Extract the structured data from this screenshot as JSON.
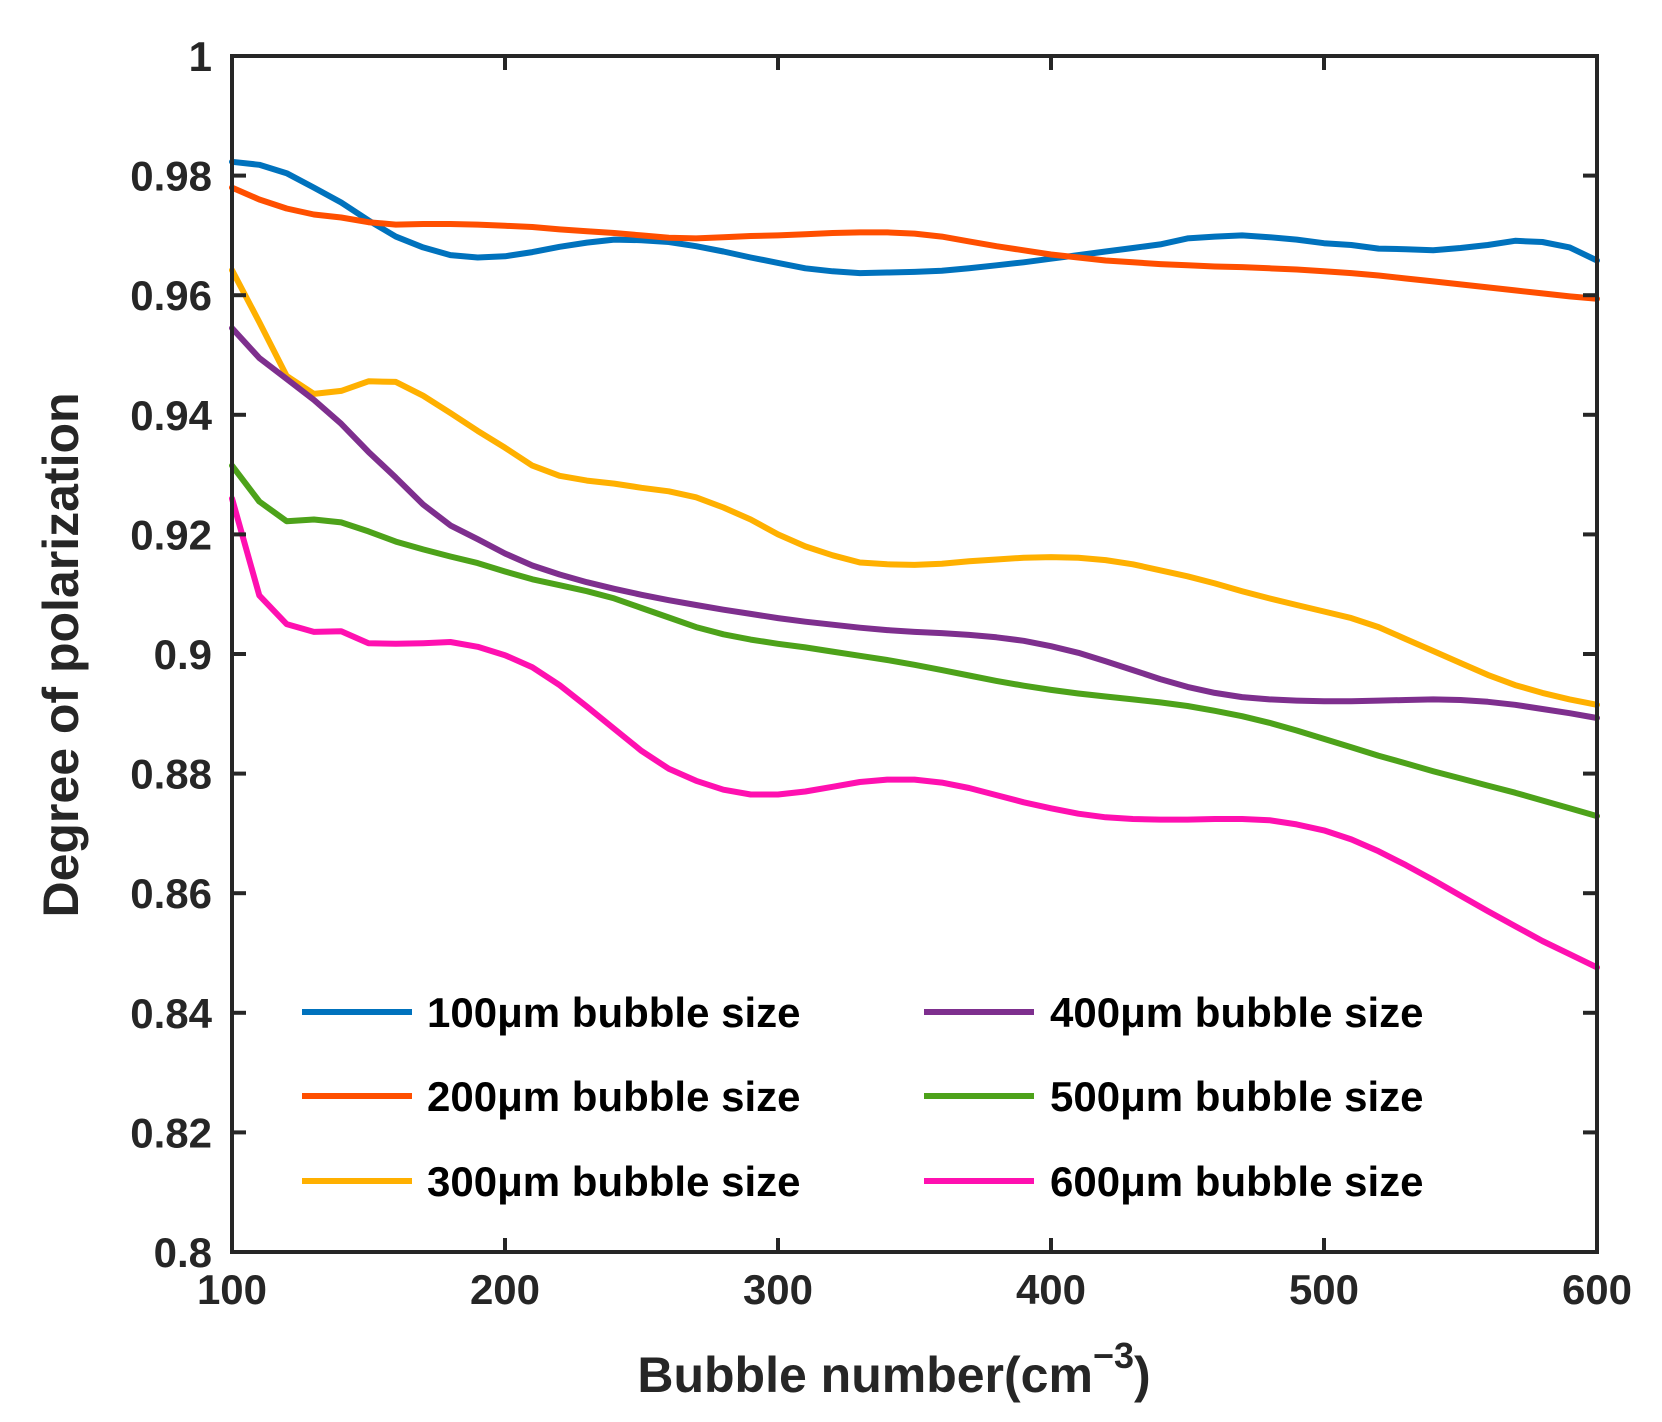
{
  "chart_data": {
    "type": "line",
    "title": "",
    "xlabel": "Bubble number(cm",
    "xlabel_sup": "−3",
    "xlabel_close": ")",
    "ylabel": "Degree of polarization",
    "xlim": [
      100,
      600
    ],
    "ylim": [
      0.8,
      1
    ],
    "xticks": [
      100,
      200,
      300,
      400,
      500,
      600
    ],
    "xtick_labels": [
      "100",
      "200",
      "300",
      "400",
      "500",
      "600"
    ],
    "yticks": [
      0.8,
      0.82,
      0.84,
      0.86,
      0.88,
      0.9,
      0.92,
      0.94,
      0.96,
      0.98,
      1
    ],
    "ytick_labels": [
      "0.8",
      "0.82",
      "0.84",
      "0.86",
      "0.88",
      "0.9",
      "0.92",
      "0.94",
      "0.96",
      "0.98",
      "1"
    ],
    "legend_position": "bottom",
    "grid": false,
    "x": [
      100,
      110,
      120,
      130,
      140,
      150,
      160,
      170,
      180,
      190,
      200,
      210,
      220,
      230,
      240,
      250,
      260,
      270,
      280,
      290,
      300,
      310,
      320,
      330,
      340,
      350,
      360,
      370,
      380,
      390,
      400,
      410,
      420,
      430,
      440,
      450,
      460,
      470,
      480,
      490,
      500,
      510,
      520,
      530,
      540,
      550,
      560,
      570,
      580,
      590,
      600
    ],
    "series": [
      {
        "name": "100μm bubble size",
        "color": "#0072BD",
        "values": [
          0.9823,
          0.9818,
          0.9804,
          0.978,
          0.9755,
          0.9725,
          0.9698,
          0.968,
          0.9667,
          0.9663,
          0.9665,
          0.9672,
          0.9681,
          0.9688,
          0.9693,
          0.9692,
          0.9689,
          0.9682,
          0.9673,
          0.9663,
          0.9654,
          0.9645,
          0.964,
          0.9637,
          0.9638,
          0.9639,
          0.9641,
          0.9645,
          0.965,
          0.9655,
          0.9661,
          0.9667,
          0.9673,
          0.9679,
          0.9685,
          0.9695,
          0.9698,
          0.97,
          0.9697,
          0.9693,
          0.9687,
          0.9684,
          0.9678,
          0.9677,
          0.9675,
          0.9679,
          0.9684,
          0.9691,
          0.9689,
          0.968,
          0.9658
        ]
      },
      {
        "name": "200μm bubble size",
        "color": "#FF4F00",
        "values": [
          0.978,
          0.976,
          0.9745,
          0.9735,
          0.973,
          0.9722,
          0.9718,
          0.9719,
          0.9719,
          0.9718,
          0.9716,
          0.9714,
          0.971,
          0.9707,
          0.9704,
          0.97,
          0.9696,
          0.9695,
          0.9697,
          0.9699,
          0.97,
          0.9702,
          0.9704,
          0.9705,
          0.9705,
          0.9703,
          0.9698,
          0.969,
          0.9682,
          0.9675,
          0.9668,
          0.9663,
          0.9658,
          0.9655,
          0.9652,
          0.965,
          0.9648,
          0.9647,
          0.9645,
          0.9643,
          0.964,
          0.9637,
          0.9633,
          0.9628,
          0.9623,
          0.9618,
          0.9613,
          0.9608,
          0.9603,
          0.9598,
          0.9594
        ]
      },
      {
        "name": "300μm bubble size",
        "color": "#FFB000",
        "values": [
          0.9642,
          0.9555,
          0.9465,
          0.9435,
          0.944,
          0.9456,
          0.9455,
          0.9432,
          0.9403,
          0.9373,
          0.9345,
          0.9315,
          0.9298,
          0.929,
          0.9285,
          0.9278,
          0.9272,
          0.9262,
          0.9245,
          0.9225,
          0.92,
          0.918,
          0.9165,
          0.9153,
          0.915,
          0.9149,
          0.9151,
          0.9155,
          0.9158,
          0.9161,
          0.9162,
          0.9161,
          0.9157,
          0.915,
          0.914,
          0.913,
          0.9118,
          0.9105,
          0.9093,
          0.9082,
          0.9071,
          0.906,
          0.9045,
          0.9025,
          0.9005,
          0.8985,
          0.8965,
          0.8948,
          0.8935,
          0.8924,
          0.8915
        ]
      },
      {
        "name": "400μm bubble size",
        "color": "#7E2F8E",
        "values": [
          0.9545,
          0.9495,
          0.946,
          0.9425,
          0.9385,
          0.9338,
          0.9295,
          0.925,
          0.9215,
          0.9192,
          0.9168,
          0.9148,
          0.9133,
          0.912,
          0.9109,
          0.9099,
          0.909,
          0.9082,
          0.9074,
          0.9067,
          0.906,
          0.9054,
          0.9049,
          0.9044,
          0.904,
          0.9037,
          0.9035,
          0.9032,
          0.9028,
          0.9022,
          0.9013,
          0.9002,
          0.8988,
          0.8973,
          0.8958,
          0.8945,
          0.8935,
          0.8928,
          0.8924,
          0.8922,
          0.8921,
          0.8921,
          0.8922,
          0.8923,
          0.8924,
          0.8923,
          0.892,
          0.8915,
          0.8908,
          0.8901,
          0.8893
        ]
      },
      {
        "name": "500μm bubble size",
        "color": "#4DA21A",
        "values": [
          0.9315,
          0.9255,
          0.9222,
          0.9225,
          0.922,
          0.9205,
          0.9188,
          0.9175,
          0.9163,
          0.9152,
          0.9138,
          0.9125,
          0.9115,
          0.9105,
          0.9093,
          0.9077,
          0.9061,
          0.9045,
          0.9033,
          0.9024,
          0.9017,
          0.9011,
          0.9004,
          0.8997,
          0.899,
          0.8982,
          0.8973,
          0.8964,
          0.8955,
          0.8947,
          0.894,
          0.8934,
          0.8929,
          0.8924,
          0.8919,
          0.8913,
          0.8905,
          0.8896,
          0.8885,
          0.8872,
          0.8858,
          0.8844,
          0.883,
          0.8817,
          0.8804,
          0.8792,
          0.878,
          0.8768,
          0.8755,
          0.8742,
          0.8729
        ]
      },
      {
        "name": "600μm bubble size",
        "color": "#FF10B0",
        "values": [
          0.926,
          0.9098,
          0.905,
          0.9037,
          0.9038,
          0.9018,
          0.9017,
          0.9018,
          0.902,
          0.9012,
          0.8998,
          0.8978,
          0.8948,
          0.8912,
          0.8875,
          0.8838,
          0.8808,
          0.8788,
          0.8773,
          0.8765,
          0.8765,
          0.877,
          0.8778,
          0.8786,
          0.879,
          0.879,
          0.8785,
          0.8776,
          0.8764,
          0.8752,
          0.8742,
          0.8733,
          0.8727,
          0.8724,
          0.8723,
          0.8723,
          0.8724,
          0.8724,
          0.8722,
          0.8715,
          0.8705,
          0.869,
          0.867,
          0.8647,
          0.8622,
          0.8596,
          0.857,
          0.8545,
          0.852,
          0.8498,
          0.8476
        ]
      }
    ]
  }
}
